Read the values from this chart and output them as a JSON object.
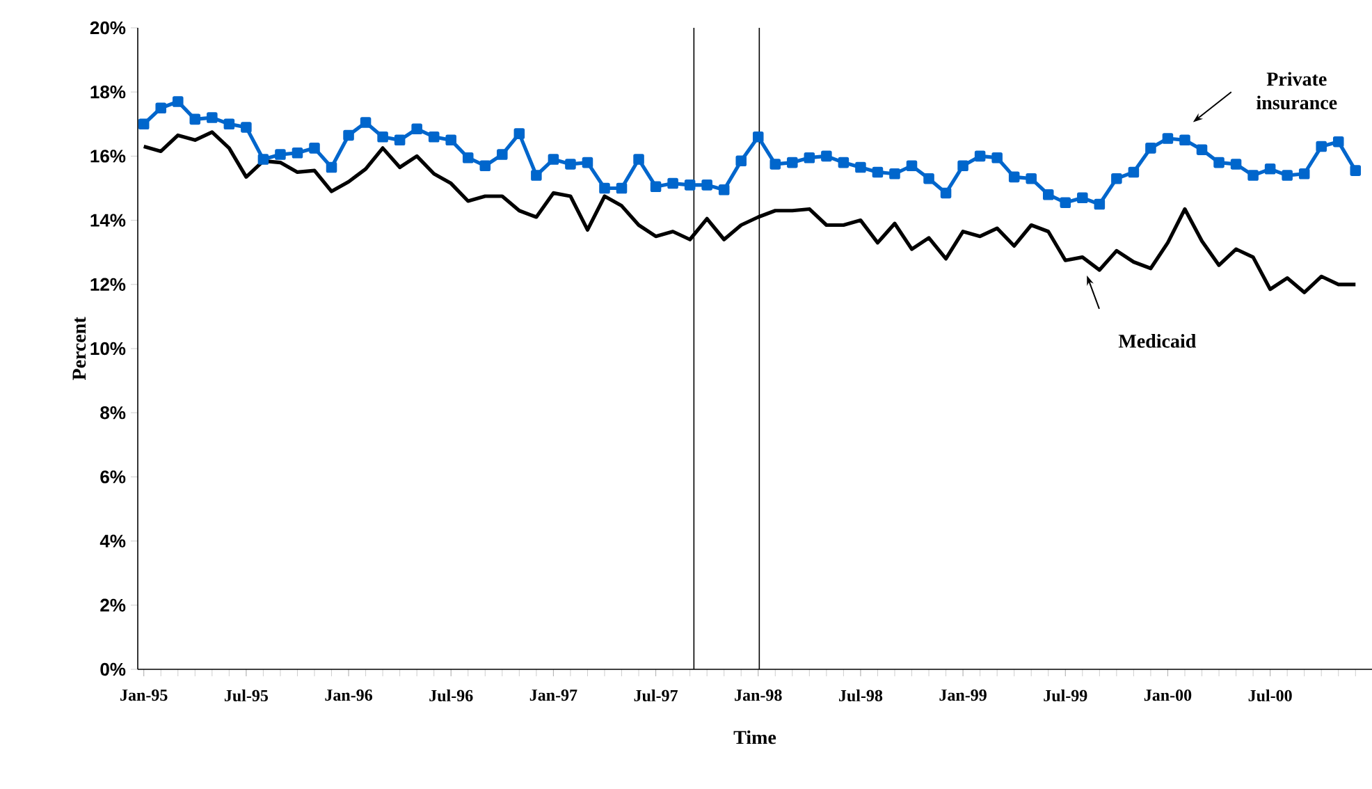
{
  "chart_data": {
    "type": "line",
    "xlabel": "Time",
    "ylabel": "Percent",
    "x": [
      "1995-01",
      "1995-02",
      "1995-03",
      "1995-04",
      "1995-05",
      "1995-06",
      "1995-07",
      "1995-08",
      "1995-09",
      "1995-10",
      "1995-11",
      "1995-12",
      "1996-01",
      "1996-02",
      "1996-03",
      "1996-04",
      "1996-05",
      "1996-06",
      "1996-07",
      "1996-08",
      "1996-09",
      "1996-10",
      "1996-11",
      "1996-12",
      "1997-01",
      "1997-02",
      "1997-03",
      "1997-04",
      "1997-05",
      "1997-06",
      "1997-07",
      "1997-08",
      "1997-09",
      "1997-10",
      "1997-11",
      "1997-12",
      "1998-01",
      "1998-02",
      "1998-03",
      "1998-04",
      "1998-05",
      "1998-06",
      "1998-07",
      "1998-08",
      "1998-09",
      "1998-10",
      "1998-11",
      "1998-12",
      "1999-01",
      "1999-02",
      "1999-03",
      "1999-04",
      "1999-05",
      "1999-06",
      "1999-07",
      "1999-08",
      "1999-09",
      "1999-10",
      "1999-11",
      "1999-12",
      "2000-01",
      "2000-02",
      "2000-03",
      "2000-04",
      "2000-05",
      "2000-06",
      "2000-07",
      "2000-08",
      "2000-09",
      "2000-10",
      "2000-11",
      "2000-12"
    ],
    "series": [
      {
        "color": "#0066cc",
        "marker": "square",
        "values": [
          17.0,
          17.5,
          17.7,
          17.15,
          17.2,
          17.0,
          16.9,
          15.9,
          16.05,
          16.1,
          16.25,
          15.65,
          16.65,
          17.05,
          16.6,
          16.5,
          16.85,
          16.6,
          16.5,
          15.95,
          15.7,
          16.05,
          16.7,
          15.4,
          15.9,
          15.75,
          15.8,
          15.0,
          15.0,
          15.9,
          15.05,
          15.15,
          15.1,
          15.1,
          14.95,
          15.85,
          16.6,
          15.75,
          15.8,
          15.95,
          16.0,
          15.8,
          15.65,
          15.5,
          15.45,
          15.7,
          15.3,
          14.85,
          15.7,
          16.0,
          15.95,
          15.35,
          15.3,
          14.8,
          14.55,
          14.7,
          14.5,
          15.3,
          15.5,
          16.25,
          16.55,
          16.5,
          16.2,
          15.8,
          15.75,
          15.4,
          15.6,
          15.4,
          15.45,
          16.3,
          16.45,
          15.55
        ]
      },
      {
        "color": "#000000",
        "marker": "none",
        "values": [
          16.3,
          16.15,
          16.65,
          16.5,
          16.75,
          16.25,
          15.35,
          15.85,
          15.8,
          15.5,
          15.55,
          14.9,
          15.2,
          15.6,
          16.25,
          15.65,
          16.0,
          15.45,
          15.15,
          14.6,
          14.75,
          14.75,
          14.3,
          14.1,
          14.85,
          14.75,
          13.7,
          14.75,
          14.45,
          13.85,
          13.5,
          13.65,
          13.4,
          14.05,
          13.4,
          13.85,
          14.1,
          14.3,
          14.3,
          14.35,
          13.85,
          13.85,
          14.0,
          13.3,
          13.9,
          13.1,
          13.45,
          12.8,
          13.65,
          13.5,
          13.75,
          13.2,
          13.85,
          13.65,
          12.75,
          12.85,
          12.45,
          13.05,
          12.7,
          12.5,
          13.3,
          14.35,
          13.35,
          12.6,
          13.1,
          12.85,
          11.85,
          12.2,
          11.75,
          12.25,
          12.0,
          12.0
        ]
      }
    ],
    "xlim": [
      "1994-12-21",
      "2000-12-31"
    ],
    "xticks": [
      {
        "value": "1995-01",
        "label": "Jan-95"
      },
      {
        "value": "1995-07",
        "label": "Jul-95"
      },
      {
        "value": "1996-01",
        "label": "Jan-96"
      },
      {
        "value": "1996-07",
        "label": "Jul-96"
      },
      {
        "value": "1997-01",
        "label": "Jan-97"
      },
      {
        "value": "1997-07",
        "label": "Jul-97"
      },
      {
        "value": "1998-01",
        "label": "Jan-98"
      },
      {
        "value": "1998-07",
        "label": "Jul-98"
      },
      {
        "value": "1999-01",
        "label": "Jan-99"
      },
      {
        "value": "1999-07",
        "label": "Jul-99"
      },
      {
        "value": "2000-01",
        "label": "Jan-00"
      },
      {
        "value": "2000-07",
        "label": "Jul-00"
      }
    ],
    "ylim": [
      0,
      20
    ],
    "yticks": [
      {
        "value": 0,
        "label": "0%"
      },
      {
        "value": 2,
        "label": "2%"
      },
      {
        "value": 4,
        "label": "4%"
      },
      {
        "value": 6,
        "label": "6%"
      },
      {
        "value": 8,
        "label": "8%"
      },
      {
        "value": 10,
        "label": "10%"
      },
      {
        "value": 12,
        "label": "12%"
      },
      {
        "value": 14,
        "label": "14%"
      },
      {
        "value": 16,
        "label": "16%"
      },
      {
        "value": 18,
        "label": "18%"
      },
      {
        "value": 20,
        "label": "20%"
      }
    ],
    "ref_lines": [
      {
        "axis": "x",
        "value": "1997-09-08",
        "color": "#000000"
      },
      {
        "axis": "x",
        "value": "1998-01-03",
        "color": "#000000"
      }
    ],
    "annotations": [
      "Private insurance",
      "Medicaid"
    ],
    "grid": false,
    "line_style": "solid"
  }
}
